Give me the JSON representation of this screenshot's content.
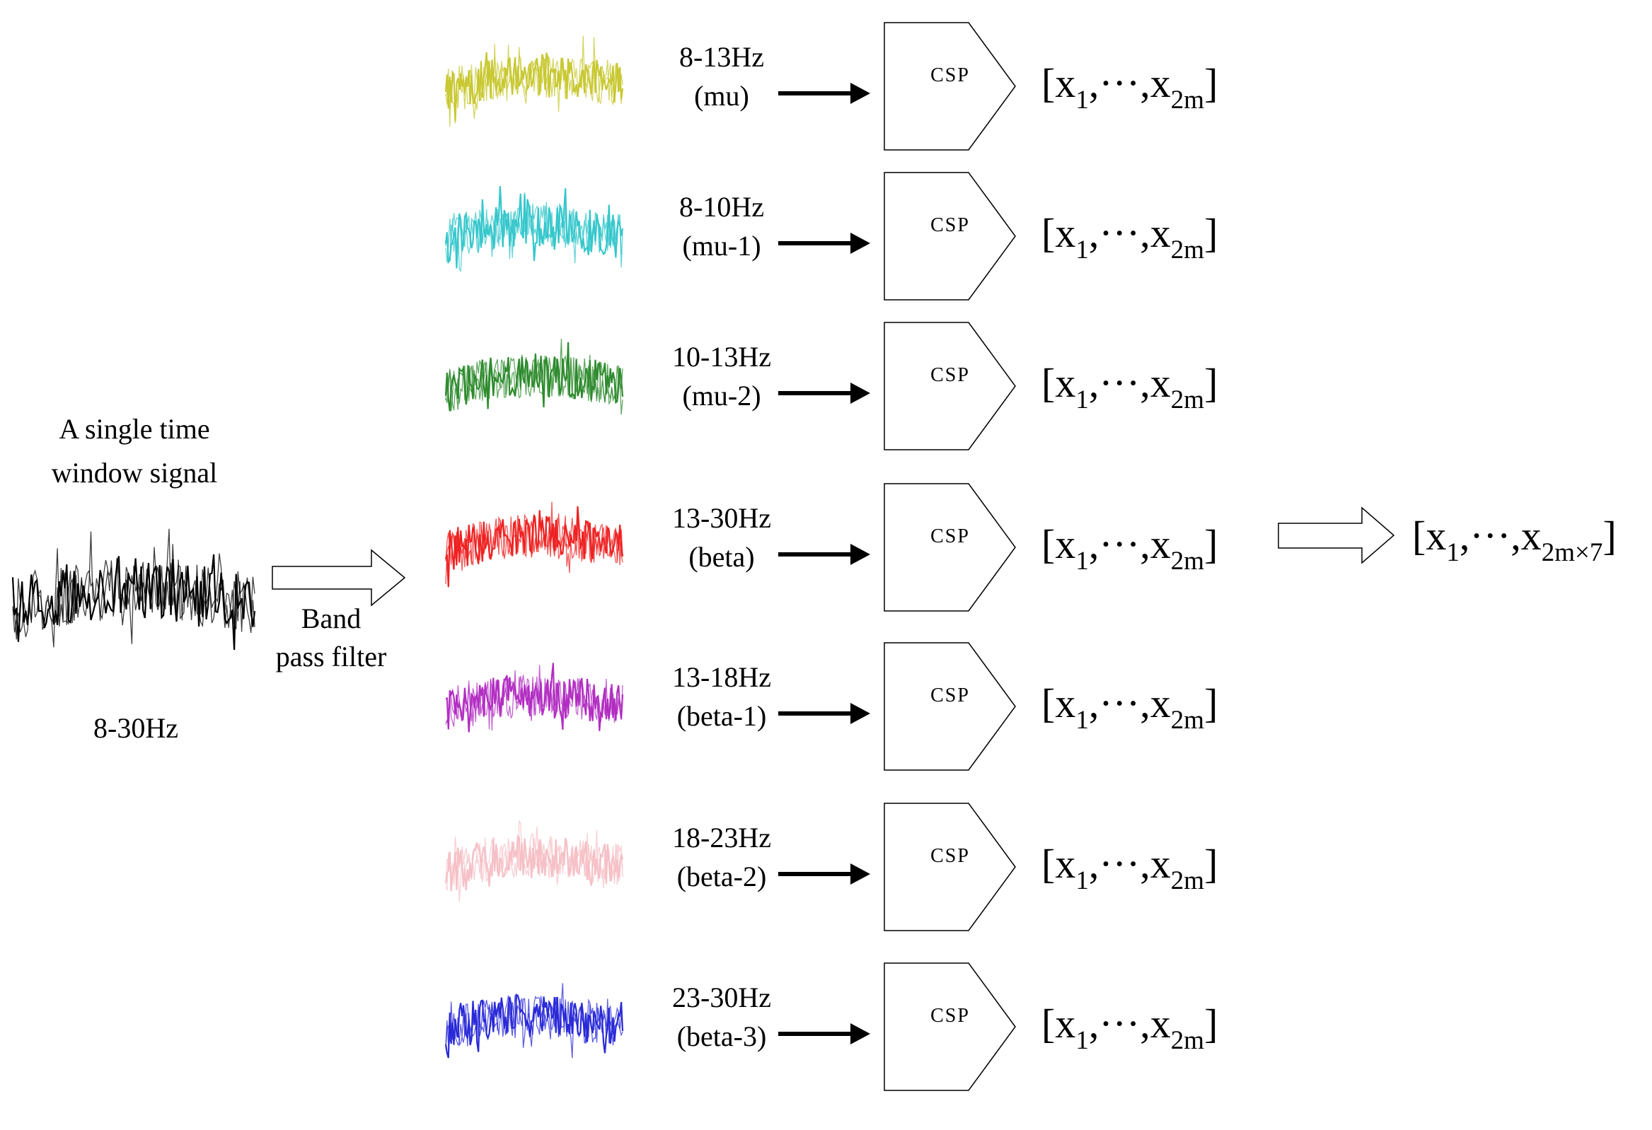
{
  "input": {
    "title_line1": "A single time",
    "title_line2": "window signal",
    "band": "8-30Hz",
    "color": "#000000"
  },
  "filter": {
    "label_line1": "Band",
    "label_line2": "pass filter"
  },
  "bands": [
    {
      "range": "8-13Hz",
      "name": "(mu)",
      "color": "#c8c832",
      "block": "CSP"
    },
    {
      "range": "8-10Hz",
      "name": "(mu-1)",
      "color": "#35c7cc",
      "block": "CSP"
    },
    {
      "range": "10-13Hz",
      "name": "(mu-2)",
      "color": "#2e8b2e",
      "block": "CSP"
    },
    {
      "range": "13-30Hz",
      "name": "(beta)",
      "color": "#ee2222",
      "block": "CSP"
    },
    {
      "range": "13-18Hz",
      "name": "(beta-1)",
      "color": "#b22ec2",
      "block": "CSP"
    },
    {
      "range": "18-23Hz",
      "name": "(beta-2)",
      "color": "#f5c0c6",
      "block": "CSP"
    },
    {
      "range": "23-30Hz",
      "name": "(beta-3)",
      "color": "#2a2ad8",
      "block": "CSP"
    }
  ],
  "feature": {
    "open": "[x",
    "first_sub": "1",
    "middle": ",···,x",
    "last_sub": "2m",
    "close": "]"
  },
  "output": {
    "open": "[x",
    "first_sub": "1",
    "middle": ",···,x",
    "last_sub": "2m×7",
    "close": "]"
  }
}
